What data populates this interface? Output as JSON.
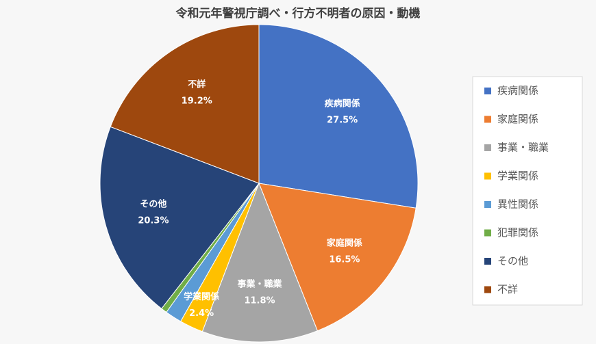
{
  "chart_data": {
    "type": "pie",
    "title": "令和元年警視庁調べ・行方不明者の原因・動機",
    "categories": [
      "疾病関係",
      "家庭関係",
      "事業・職業",
      "学業関係",
      "異性関係",
      "犯罪関係",
      "その他",
      "不詳"
    ],
    "values": [
      27.5,
      16.5,
      11.8,
      2.4,
      1.7,
      0.6,
      20.3,
      19.2
    ],
    "value_labels": [
      "27.5%",
      "16.5%",
      "11.8%",
      "2.4%",
      null,
      null,
      "20.3%",
      "19.2%"
    ],
    "colors": [
      "#4472c4",
      "#ed7d31",
      "#a5a5a5",
      "#ffc000",
      "#5b9bd5",
      "#70ad47",
      "#264478",
      "#9e480e"
    ],
    "legend": "right"
  }
}
